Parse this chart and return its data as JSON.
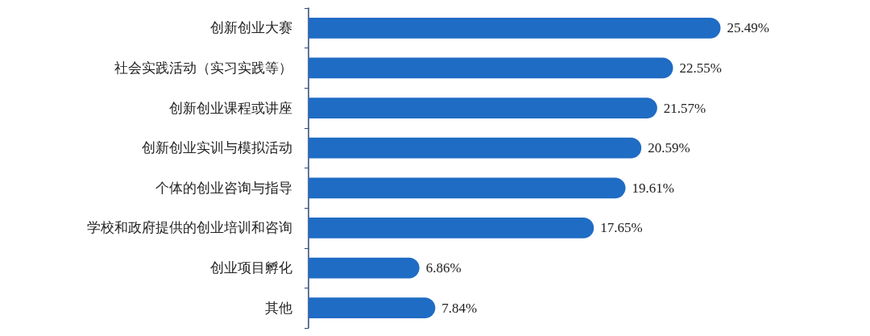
{
  "chart_data": {
    "type": "bar",
    "orientation": "horizontal",
    "categories": [
      "创新创业大赛",
      "社会实践活动（实习实践等）",
      "创新创业课程或讲座",
      "创新创业实训与模拟活动",
      "个体的创业咨询与指导",
      "学校和政府提供的创业培训和咨询",
      "创业项目孵化",
      "其他"
    ],
    "values": [
      25.49,
      22.55,
      21.57,
      20.59,
      19.61,
      17.65,
      6.86,
      7.84
    ],
    "value_labels": [
      "25.49%",
      "22.55%",
      "21.57%",
      "20.59%",
      "19.61%",
      "17.65%",
      "6.86%",
      "7.84%"
    ],
    "color": "#1f6cc4",
    "tick_labels": "y"
  }
}
